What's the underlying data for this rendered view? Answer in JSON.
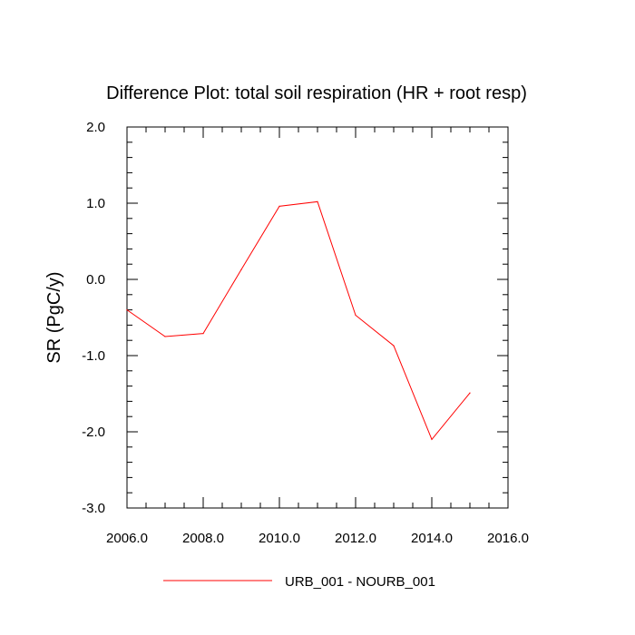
{
  "chart_data": {
    "type": "line",
    "title": "Difference Plot: total soil respiration (HR + root resp)",
    "xlabel": "",
    "ylabel": "SR  (PgC/y)",
    "xlim": [
      2006,
      2016
    ],
    "ylim": [
      -3,
      2
    ],
    "x_ticks": [
      2006,
      2008,
      2010,
      2012,
      2014,
      2016
    ],
    "x_tick_labels": [
      "2006.0",
      "2008.0",
      "2010.0",
      "2012.0",
      "2014.0",
      "2016.0"
    ],
    "y_ticks": [
      -3,
      -2,
      -1,
      0,
      1,
      2
    ],
    "y_tick_labels": [
      "-3.0",
      "-2.0",
      "-1.0",
      "0.0",
      "1.0",
      "2.0"
    ],
    "grid": false,
    "legend_position": "bottom-center",
    "series": [
      {
        "name": "URB_001 - NOURB_001",
        "color": "#ff0000",
        "x": [
          2006,
          2007,
          2008,
          2009,
          2010,
          2011,
          2012,
          2013,
          2014,
          2015
        ],
        "values": [
          -0.4,
          -0.75,
          -0.71,
          0.13,
          0.96,
          1.02,
          -0.47,
          -0.87,
          -2.1,
          -1.49
        ]
      }
    ]
  }
}
